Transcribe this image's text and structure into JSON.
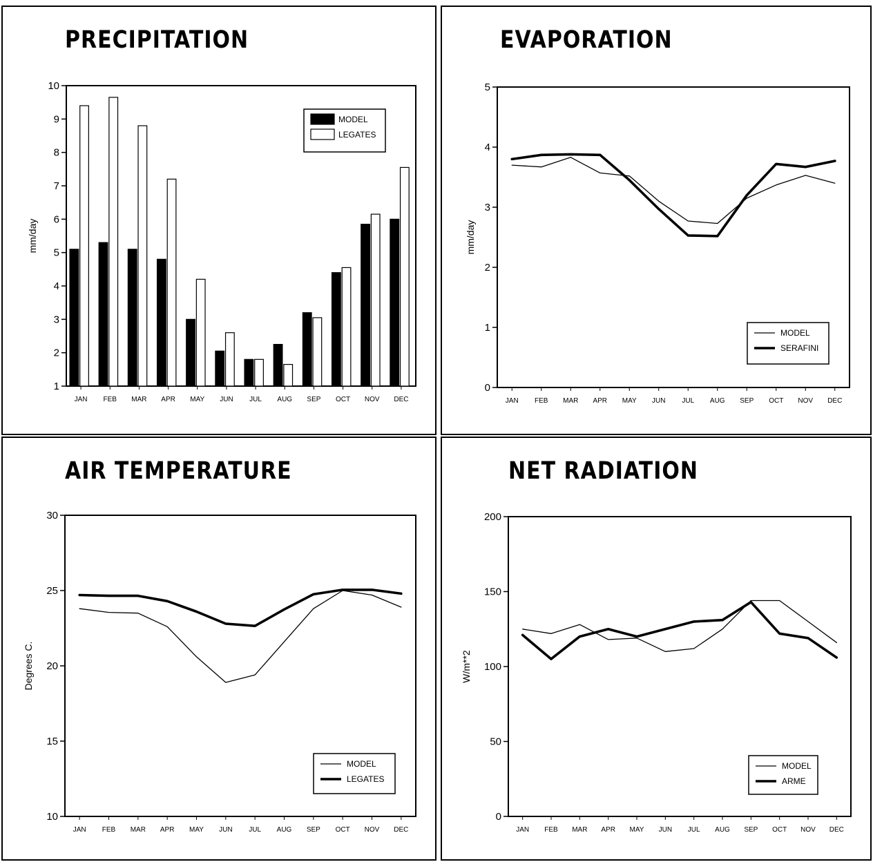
{
  "chart_data": [
    {
      "type": "bar",
      "title": "PRECIPITATION",
      "xlabel": "",
      "ylabel": "mm/day",
      "ylim": [
        1,
        10
      ],
      "yticks": [
        1,
        2,
        3,
        4,
        5,
        6,
        7,
        8,
        9,
        10
      ],
      "categories": [
        "JAN",
        "FEB",
        "MAR",
        "APR",
        "MAY",
        "JUN",
        "JUL",
        "AUG",
        "SEP",
        "OCT",
        "NOV",
        "DEC"
      ],
      "series": [
        {
          "name": "MODEL",
          "color": "#000000",
          "values": [
            5.1,
            5.3,
            5.1,
            4.8,
            3.0,
            2.05,
            1.8,
            2.25,
            3.2,
            4.4,
            5.85,
            6.0
          ]
        },
        {
          "name": "LEGATES",
          "color": "#ffffff",
          "values": [
            9.4,
            9.65,
            8.8,
            7.2,
            4.2,
            2.6,
            1.8,
            1.65,
            3.05,
            4.55,
            6.15,
            7.55
          ]
        }
      ],
      "legend": "top-right",
      "grid": false
    },
    {
      "type": "line",
      "title": "EVAPORATION",
      "xlabel": "",
      "ylabel": "mm/day",
      "ylim": [
        0,
        5
      ],
      "yticks": [
        0,
        1,
        2,
        3,
        4,
        5
      ],
      "categories": [
        "JAN",
        "FEB",
        "MAR",
        "APR",
        "MAY",
        "JUN",
        "JUL",
        "AUG",
        "SEP",
        "OCT",
        "NOV",
        "DEC"
      ],
      "series": [
        {
          "name": "MODEL",
          "width": "thin",
          "values": [
            3.7,
            3.67,
            3.83,
            3.57,
            3.52,
            3.1,
            2.77,
            2.73,
            3.15,
            3.37,
            3.53,
            3.4
          ]
        },
        {
          "name": "SERAFINI",
          "width": "thick",
          "values": [
            3.8,
            3.87,
            3.88,
            3.87,
            3.45,
            2.97,
            2.53,
            2.52,
            3.2,
            3.72,
            3.67,
            3.77
          ]
        }
      ],
      "legend": "bottom-right",
      "grid": false
    },
    {
      "type": "line",
      "title": "AIR TEMPERATURE",
      "xlabel": "",
      "ylabel": "Degrees C.",
      "ylim": [
        10,
        30
      ],
      "yticks": [
        10,
        15,
        20,
        25,
        30
      ],
      "categories": [
        "JAN",
        "FEB",
        "MAR",
        "APR",
        "MAY",
        "JUN",
        "JUL",
        "AUG",
        "SEP",
        "OCT",
        "NOV",
        "DEC"
      ],
      "series": [
        {
          "name": "MODEL",
          "width": "thin",
          "values": [
            23.8,
            23.55,
            23.5,
            22.6,
            20.6,
            18.9,
            19.4,
            21.6,
            23.8,
            25.0,
            24.7,
            23.9
          ]
        },
        {
          "name": "LEGATES",
          "width": "thick",
          "values": [
            24.7,
            24.65,
            24.65,
            24.3,
            23.6,
            22.8,
            22.65,
            23.75,
            24.75,
            25.05,
            25.05,
            24.8
          ]
        }
      ],
      "legend": "bottom-right",
      "grid": false
    },
    {
      "type": "line",
      "title": "NET RADIATION",
      "xlabel": "",
      "ylabel": "W/m**2",
      "ylim": [
        0,
        200
      ],
      "yticks": [
        0,
        50,
        100,
        150,
        200
      ],
      "categories": [
        "JAN",
        "FEB",
        "MAR",
        "APR",
        "MAY",
        "JUN",
        "JUL",
        "AUG",
        "SEP",
        "OCT",
        "NOV",
        "DEC"
      ],
      "series": [
        {
          "name": "MODEL",
          "width": "thin",
          "values": [
            125,
            122,
            128,
            118,
            119,
            110,
            112,
            125,
            144,
            144,
            130,
            116
          ]
        },
        {
          "name": "ARME",
          "width": "thick",
          "values": [
            121,
            105,
            120,
            125,
            120,
            125,
            130,
            131,
            143,
            122,
            119,
            106
          ]
        }
      ],
      "legend": "bottom-right",
      "grid": false
    }
  ]
}
